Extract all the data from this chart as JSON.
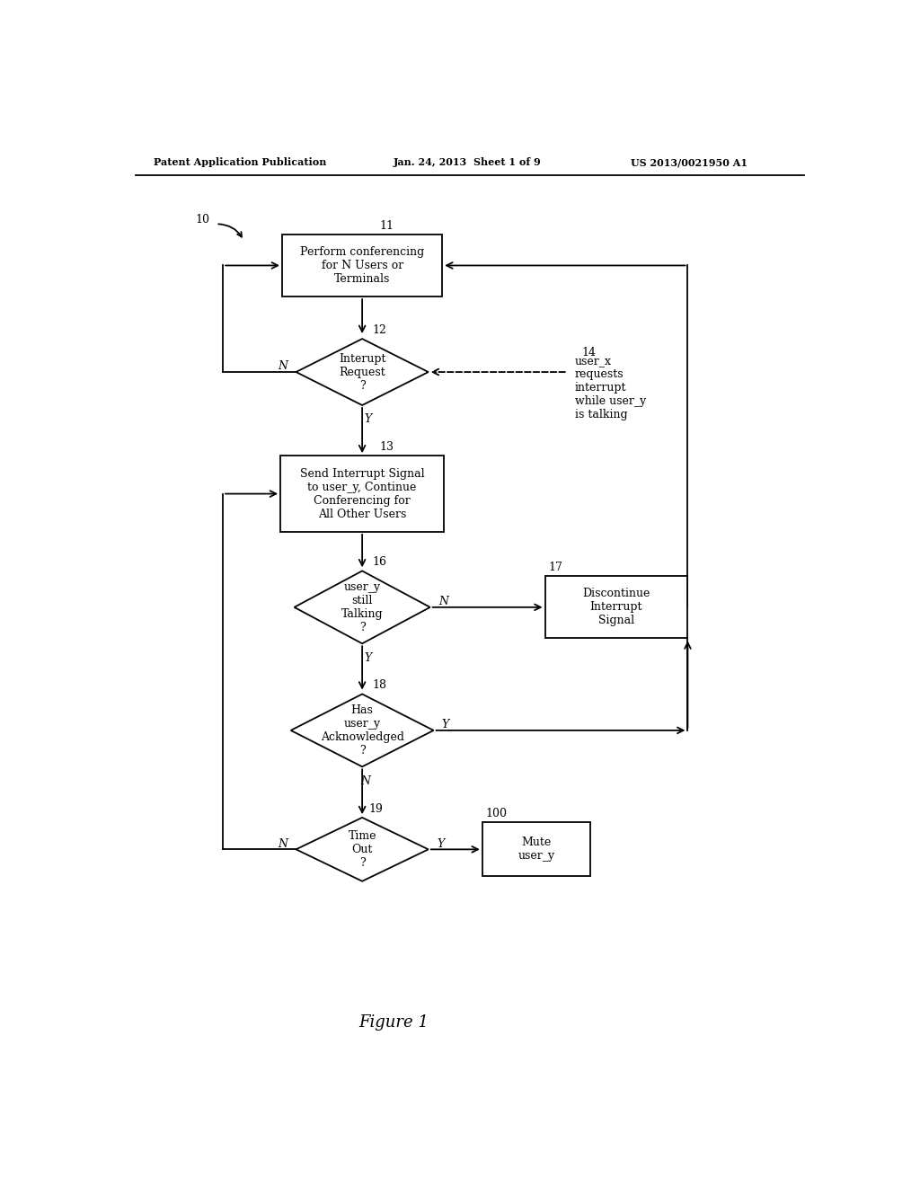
{
  "header_left": "Patent Application Publication",
  "header_mid": "Jan. 24, 2013  Sheet 1 of 9",
  "header_right": "US 2013/0021950 A1",
  "figure_label": "Figure 1",
  "label_10": "10",
  "label_11": "11",
  "label_12": "12",
  "label_13": "13",
  "label_14": "14",
  "label_16": "16",
  "label_17": "17",
  "label_18": "18",
  "label_19": "19",
  "label_100": "100",
  "box11_text": "Perform conferencing\nfor N Users or\nTerminals",
  "box13_text": "Send Interrupt Signal\nto user_y, Continue\nConferencing for\nAll Other Users",
  "box17_text": "Discontinue\nInterrupt\nSignal",
  "box100_text": "Mute\nuser_y",
  "dia12_text": "Interupt\nRequest\n?",
  "dia16_text": "user_y\nstill\nTalking\n?",
  "dia18_text": "Has\nuser_y\nAcknowledged\n?",
  "dia19_text": "Time\nOut\n?",
  "note14_text": "user_x\nrequests\ninterrupt\nwhile user_y\nis talking",
  "font_size": 9
}
